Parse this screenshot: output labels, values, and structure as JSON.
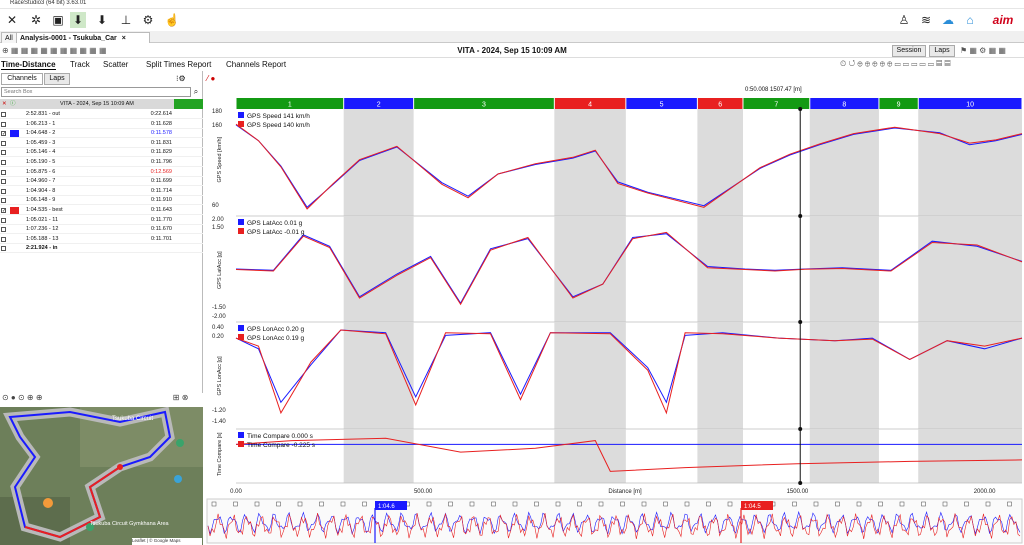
{
  "window_title": "RaceStudio3 (64 bit) 3.63.01",
  "tabs": {
    "all": "All",
    "analysis": "Analysis-0001 - Tsukuba_Car"
  },
  "header": {
    "title": "VITA - 2024, Sep 15 10:09 AM",
    "session_btn": "Session",
    "laps_btn": "Laps"
  },
  "subtabs": [
    "Time-Distance",
    "Track",
    "Scatter",
    "Split Times Report",
    "Channels Report"
  ],
  "left": {
    "channels_btn": "Channels",
    "laps_btn": "Laps",
    "search_placeholder": "Search Box",
    "session_label": "VITA - 2024, Sep 15 10:09 AM",
    "laps": [
      {
        "name": "2:52.831 - out",
        "time": "0:22.614",
        "checked": false,
        "color": "",
        "red": false
      },
      {
        "name": "1:06.213 - 1",
        "time": "0:11.628",
        "checked": false,
        "color": "",
        "red": false
      },
      {
        "name": "1:04.648 - 2",
        "time": "0:11.578",
        "checked": true,
        "color": "#1a1aff",
        "red": false
      },
      {
        "name": "1:05.459 - 3",
        "time": "0:11.831",
        "checked": false,
        "color": "",
        "red": false
      },
      {
        "name": "1:05.146 - 4",
        "time": "0:11.829",
        "checked": false,
        "color": "",
        "red": false
      },
      {
        "name": "1:05.190 - 5",
        "time": "0:11.796",
        "checked": false,
        "color": "",
        "red": false
      },
      {
        "name": "1:05.875 - 6",
        "time": "0:12.569",
        "checked": false,
        "color": "",
        "red": true
      },
      {
        "name": "1:04.960 - 7",
        "time": "0:11.699",
        "checked": false,
        "color": "",
        "red": false
      },
      {
        "name": "1:04.904 - 8",
        "time": "0:11.714",
        "checked": false,
        "color": "",
        "red": false
      },
      {
        "name": "1:06.148 - 9",
        "time": "0:11.910",
        "checked": false,
        "color": "",
        "red": false
      },
      {
        "name": "1:04.535 - best",
        "time": "0:11.643",
        "checked": true,
        "color": "#e82020",
        "red": false
      },
      {
        "name": "1:05.021 - 11",
        "time": "0:11.770",
        "checked": false,
        "color": "",
        "red": false
      },
      {
        "name": "1:07.236 - 12",
        "time": "0:11.670",
        "checked": false,
        "color": "",
        "red": false
      },
      {
        "name": "1:05.188 - 13",
        "time": "0:11.701",
        "checked": false,
        "color": "",
        "red": false
      },
      {
        "name": "2:21.924 - in",
        "time": "",
        "checked": false,
        "color": "",
        "red": false
      }
    ],
    "map_labels": [
      "Tsukuba Circuit Gymkhana Area",
      "Tsukuba Circuit",
      "Leaflet | © Google Maps"
    ]
  },
  "cursor_label": "0:50.008  1507.47 [m]",
  "sectors": [
    {
      "label": "1",
      "color": "#139a13",
      "start": 0,
      "end": 0.137
    },
    {
      "label": "2",
      "color": "#1a1aff",
      "start": 0.137,
      "end": 0.226
    },
    {
      "label": "3",
      "color": "#139a13",
      "start": 0.226,
      "end": 0.405
    },
    {
      "label": "4",
      "color": "#e82020",
      "start": 0.405,
      "end": 0.496
    },
    {
      "label": "5",
      "color": "#1a1aff",
      "start": 0.496,
      "end": 0.587
    },
    {
      "label": "6",
      "color": "#e82020",
      "start": 0.587,
      "end": 0.645
    },
    {
      "label": "7",
      "color": "#139a13",
      "start": 0.645,
      "end": 0.73
    },
    {
      "label": "8",
      "color": "#1a1aff",
      "start": 0.73,
      "end": 0.818
    },
    {
      "label": "9",
      "color": "#139a13",
      "start": 0.818,
      "end": 0.868
    },
    {
      "label": "10",
      "color": "#1a1aff",
      "start": 0.868,
      "end": 1.0
    }
  ],
  "sector_boundaries": [
    0.137,
    0.226,
    0.405,
    0.496,
    0.587,
    0.645,
    0.73,
    0.818,
    0.868,
    1.0
  ],
  "panels": [
    {
      "title": "GPS Speed",
      "unit": "km/h",
      "ylabel": "GPS Speed [km/h]",
      "legend": [
        {
          "name": "GPS Speed",
          "value": "141",
          "unit": "km/h",
          "color": "#1a1aff"
        },
        {
          "name": "GPS Speed",
          "value": "140",
          "unit": "km/h",
          "color": "#e82020"
        }
      ],
      "ticks": [
        "180",
        "160",
        "60"
      ]
    },
    {
      "title": "GPS LatAcc",
      "unit": "g",
      "ylabel": "GPS LatAcc [g]",
      "legend": [
        {
          "name": "GPS LatAcc",
          "value": "0.01",
          "unit": "g",
          "color": "#1a1aff"
        },
        {
          "name": "GPS LatAcc",
          "value": "-0.01",
          "unit": "g",
          "color": "#e82020"
        }
      ],
      "ticks": [
        "2.00",
        "1.50",
        "-1.50",
        "-2.00"
      ]
    },
    {
      "title": "GPS LonAcc",
      "unit": "g",
      "ylabel": "GPS LonAcc [g]",
      "legend": [
        {
          "name": "GPS LonAcc",
          "value": "0.20",
          "unit": "g",
          "color": "#1a1aff"
        },
        {
          "name": "GPS LonAcc",
          "value": "0.19",
          "unit": "g",
          "color": "#e82020"
        }
      ],
      "ticks": [
        "0.40",
        "0.20",
        "-1.20",
        "-1.40"
      ]
    },
    {
      "title": "Time Compare",
      "unit": "s",
      "ylabel": "Time Compare [s]",
      "legend": [
        {
          "name": "Time Compare",
          "value": "0.000",
          "unit": "s",
          "color": "#1a1aff"
        },
        {
          "name": "Time Compare",
          "value": "-0.225",
          "unit": "s",
          "color": "#e82020"
        }
      ],
      "ticks": []
    }
  ],
  "xaxis": {
    "ticks": [
      "0.00",
      "500.00",
      "1500.00",
      "2000.00"
    ],
    "label": "Distance [m]"
  },
  "bottom_markers": [
    {
      "label": "1:04.6",
      "color": "#1a1aff"
    },
    {
      "label": "1:04.5",
      "color": "#e82020"
    }
  ],
  "chart_data": {
    "type": "line",
    "title": "VITA - 2024, Sep 15 10:09 AM",
    "xlabel": "Distance [m]",
    "xlim": [
      0,
      2100
    ],
    "x_ticks": [
      0,
      500,
      1500,
      2000
    ],
    "cursor_x": 1507.47,
    "series": [
      {
        "name": "GPS Speed",
        "unit": "km/h",
        "color": "#1a1aff",
        "x": [
          0,
          60,
          120,
          190,
          260,
          330,
          430,
          550,
          620,
          700,
          800,
          900,
          960,
          1020,
          1100,
          1250,
          1400,
          1480,
          1560,
          1650,
          1760,
          1880,
          1960,
          2030,
          2100
        ],
        "values": [
          170,
          150,
          118,
          66,
          95,
          125,
          142,
          97,
          80,
          108,
          120,
          128,
          137,
          98,
          85,
          68,
          115,
          132,
          145,
          158,
          166,
          160,
          145,
          150,
          158
        ]
      },
      {
        "name": "GPS Speed",
        "unit": "km/h",
        "color": "#e82020",
        "x": [
          0,
          60,
          120,
          190,
          260,
          330,
          430,
          550,
          620,
          700,
          800,
          900,
          960,
          1020,
          1100,
          1250,
          1400,
          1480,
          1560,
          1650,
          1760,
          1880,
          1960,
          2030,
          2100
        ],
        "values": [
          171,
          150,
          117,
          64,
          96,
          126,
          143,
          95,
          78,
          108,
          121,
          129,
          138,
          96,
          84,
          66,
          116,
          133,
          146,
          159,
          167,
          159,
          147,
          151,
          159
        ]
      },
      {
        "name": "GPS LatAcc",
        "unit": "g",
        "color": "#1a1aff",
        "x": [
          0,
          100,
          180,
          250,
          330,
          430,
          520,
          600,
          680,
          780,
          900,
          980,
          1060,
          1150,
          1260,
          1360,
          1440,
          1520,
          1620,
          1750,
          1860,
          1980,
          2100
        ],
        "values": [
          0.0,
          -0.05,
          1.35,
          0.9,
          -1.1,
          -0.2,
          0.5,
          -1.35,
          0.8,
          1.2,
          -1.1,
          -0.6,
          1.25,
          1.4,
          0.1,
          0.0,
          -0.05,
          0.0,
          0.05,
          -0.05,
          1.1,
          0.9,
          0.3
        ]
      },
      {
        "name": "GPS LatAcc",
        "unit": "g",
        "color": "#e82020",
        "x": [
          0,
          100,
          180,
          250,
          330,
          430,
          520,
          600,
          680,
          780,
          900,
          980,
          1060,
          1150,
          1260,
          1360,
          1440,
          1520,
          1620,
          1750,
          1860,
          1980,
          2100
        ],
        "values": [
          -0.02,
          -0.08,
          1.3,
          0.85,
          -1.15,
          -0.25,
          0.45,
          -1.4,
          0.75,
          1.25,
          -1.15,
          -0.6,
          1.2,
          1.45,
          0.05,
          -0.02,
          -0.08,
          -0.01,
          0.02,
          -0.08,
          1.05,
          0.95,
          0.28
        ]
      },
      {
        "name": "GPS LonAcc",
        "unit": "g",
        "color": "#1a1aff",
        "x": [
          0,
          60,
          120,
          200,
          280,
          400,
          480,
          560,
          680,
          760,
          840,
          1000,
          1100,
          1150,
          1200,
          1300,
          1450,
          1600,
          1700,
          1800,
          1900,
          2000,
          2100
        ],
        "values": [
          0.2,
          0.0,
          -1.0,
          -0.3,
          0.35,
          0.3,
          -0.9,
          0.25,
          0.3,
          -0.85,
          0.3,
          0.3,
          -0.35,
          -1.0,
          0.25,
          0.3,
          0.2,
          0.15,
          0.2,
          -0.2,
          0.15,
          0.0,
          0.2
        ]
      },
      {
        "name": "GPS LonAcc",
        "unit": "g",
        "color": "#e82020",
        "x": [
          0,
          60,
          120,
          200,
          280,
          400,
          480,
          560,
          680,
          760,
          840,
          1000,
          1100,
          1150,
          1200,
          1300,
          1450,
          1600,
          1700,
          1800,
          1900,
          2000,
          2100
        ],
        "values": [
          0.2,
          0.05,
          -1.2,
          -0.25,
          0.35,
          0.28,
          -1.05,
          0.3,
          0.28,
          -0.95,
          0.3,
          0.28,
          -0.4,
          -1.2,
          0.3,
          0.28,
          0.2,
          0.15,
          0.18,
          -0.2,
          0.15,
          0.05,
          0.2
        ]
      },
      {
        "name": "Time Compare",
        "unit": "s",
        "color": "#1a1aff",
        "x": [
          0,
          2100
        ],
        "values": [
          0.0,
          0.0
        ]
      },
      {
        "name": "Time Compare",
        "unit": "s",
        "color": "#e82020",
        "x": [
          0,
          150,
          400,
          600,
          800,
          960,
          1000,
          1200,
          1500,
          1800,
          2100
        ],
        "values": [
          0.0,
          0.05,
          0.08,
          -0.1,
          -0.05,
          0.05,
          -0.35,
          -0.3,
          -0.25,
          -0.22,
          -0.2
        ]
      }
    ]
  }
}
